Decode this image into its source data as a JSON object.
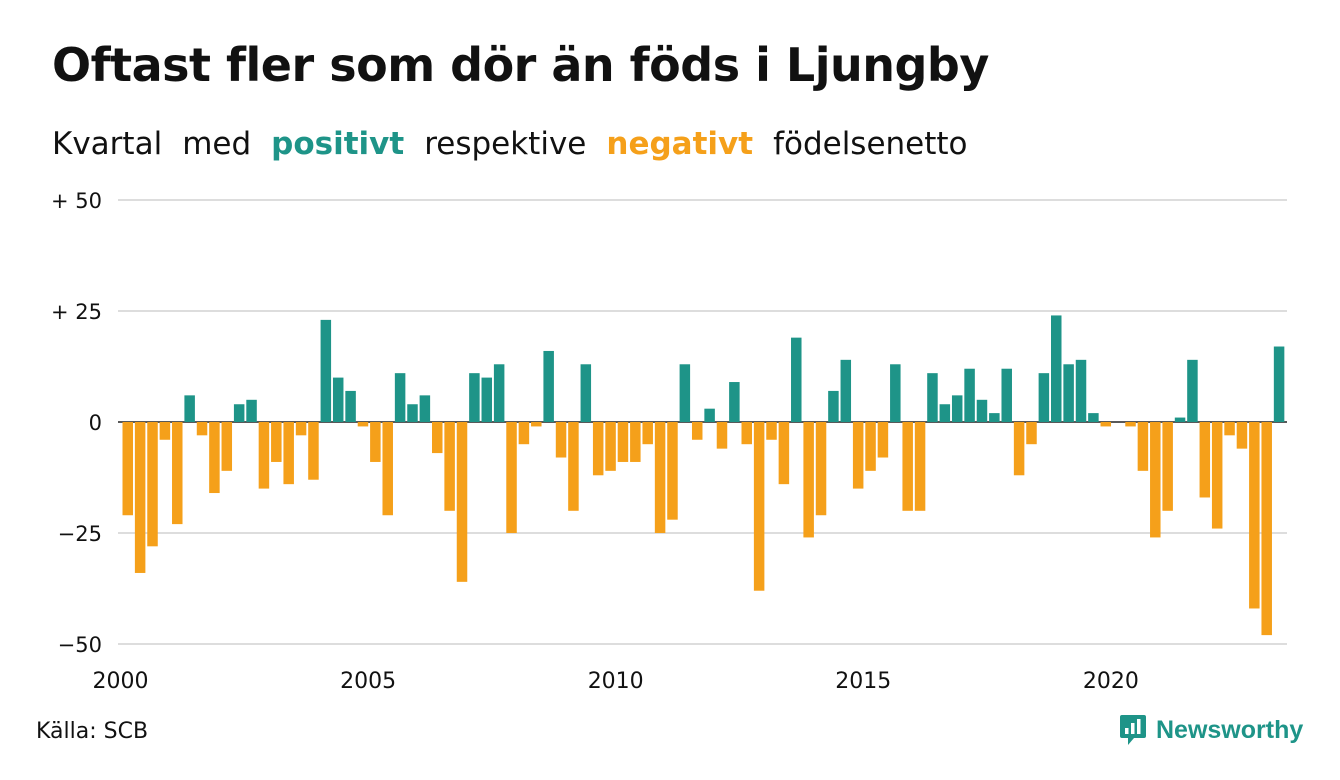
{
  "title": "Oftast fler som dör än föds i Ljungby",
  "subtitle": {
    "w1": "Kvartal",
    "w2": "med",
    "positive": "positivt",
    "w3": "respektive",
    "negative": "negativt",
    "w4": "födelsenetto"
  },
  "source": "Källa: SCB",
  "brand": "Newsworthy",
  "colors": {
    "positive": "#1e9488",
    "negative": "#f5a01a",
    "grid": "#dddddd"
  },
  "chart_data": {
    "type": "bar",
    "x_start": "2000 Q1",
    "x_end": "2023 Q2",
    "x_ticks": [
      "2000",
      "2005",
      "2010",
      "2015",
      "2020"
    ],
    "y_ticks": [
      "+ 50",
      "+ 25",
      "0",
      "−25",
      "−50"
    ],
    "y_tick_values": [
      50,
      25,
      0,
      -25,
      -50
    ],
    "ylim": [
      -50,
      50
    ],
    "grid": true,
    "series": [
      {
        "values": [
          -21,
          -34,
          -28,
          -4,
          -23,
          6,
          -3,
          -16,
          -11,
          4,
          5,
          -15,
          -9,
          -14,
          -3,
          -13,
          23,
          10,
          7,
          -1,
          -9,
          -21,
          11,
          4,
          6,
          -7,
          -20,
          -36,
          11,
          10,
          13,
          -25,
          -5,
          -1,
          16,
          -8,
          -20,
          13,
          -12,
          -11,
          -9,
          -9,
          -5,
          -25,
          -22,
          13,
          -4,
          3,
          -6,
          9,
          -5,
          -38,
          -4,
          -14,
          19,
          -26,
          -21,
          7,
          14,
          -15,
          -11,
          -8,
          13,
          -20,
          -20,
          11,
          4,
          6,
          12,
          5,
          2,
          12,
          -12,
          -5,
          11,
          24,
          13,
          14,
          2,
          -1,
          0,
          -1,
          -11,
          -26,
          -20,
          1,
          14,
          -17,
          -24,
          -3,
          -6,
          -42,
          -48,
          17
        ]
      }
    ]
  }
}
